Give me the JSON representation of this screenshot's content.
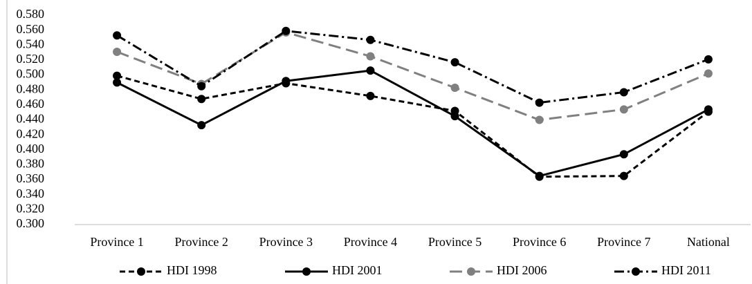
{
  "chart_data": {
    "type": "line",
    "categories": [
      "Province 1",
      "Province 2",
      "Province 3",
      "Province 4",
      "Province 5",
      "Province 6",
      "Province 7",
      "National"
    ],
    "series": [
      {
        "name": "HDI 1998",
        "color": "#000000",
        "dash": "8,5",
        "values": [
          0.499,
          0.468,
          0.489,
          0.472,
          0.452,
          0.364,
          0.365,
          0.451
        ]
      },
      {
        "name": "HDI 2001",
        "color": "#000000",
        "dash": "none",
        "values": [
          0.49,
          0.433,
          0.492,
          0.506,
          0.445,
          0.365,
          0.394,
          0.454
        ]
      },
      {
        "name": "HDI 2006",
        "color": "#808080",
        "dash": "18,8",
        "values": [
          0.531,
          0.488,
          0.557,
          0.525,
          0.483,
          0.44,
          0.454,
          0.502
        ]
      },
      {
        "name": "HDI 2011",
        "color": "#000000",
        "dash": "14,5,3,5",
        "values": [
          0.553,
          0.485,
          0.559,
          0.547,
          0.517,
          0.463,
          0.477,
          0.521
        ]
      }
    ],
    "ylim": [
      0.3,
      0.58
    ],
    "yticks": [
      {
        "value": 0.3,
        "label": "0.300"
      },
      {
        "value": 0.32,
        "label": "0.320"
      },
      {
        "value": 0.34,
        "label": "0.340"
      },
      {
        "value": 0.36,
        "label": "0.360"
      },
      {
        "value": 0.38,
        "label": "0.380"
      },
      {
        "value": 0.4,
        "label": "0.400"
      },
      {
        "value": 0.42,
        "label": "0.420"
      },
      {
        "value": 0.44,
        "label": "0.440"
      },
      {
        "value": 0.46,
        "label": "0.460"
      },
      {
        "value": 0.48,
        "label": "0.480"
      },
      {
        "value": 0.5,
        "label": "0.500"
      },
      {
        "value": 0.52,
        "label": "0.520"
      },
      {
        "value": 0.54,
        "label": "0.540"
      },
      {
        "value": 0.56,
        "label": "0.560"
      },
      {
        "value": 0.58,
        "label": "0.580"
      }
    ],
    "grid": false,
    "legend": "bottom"
  }
}
